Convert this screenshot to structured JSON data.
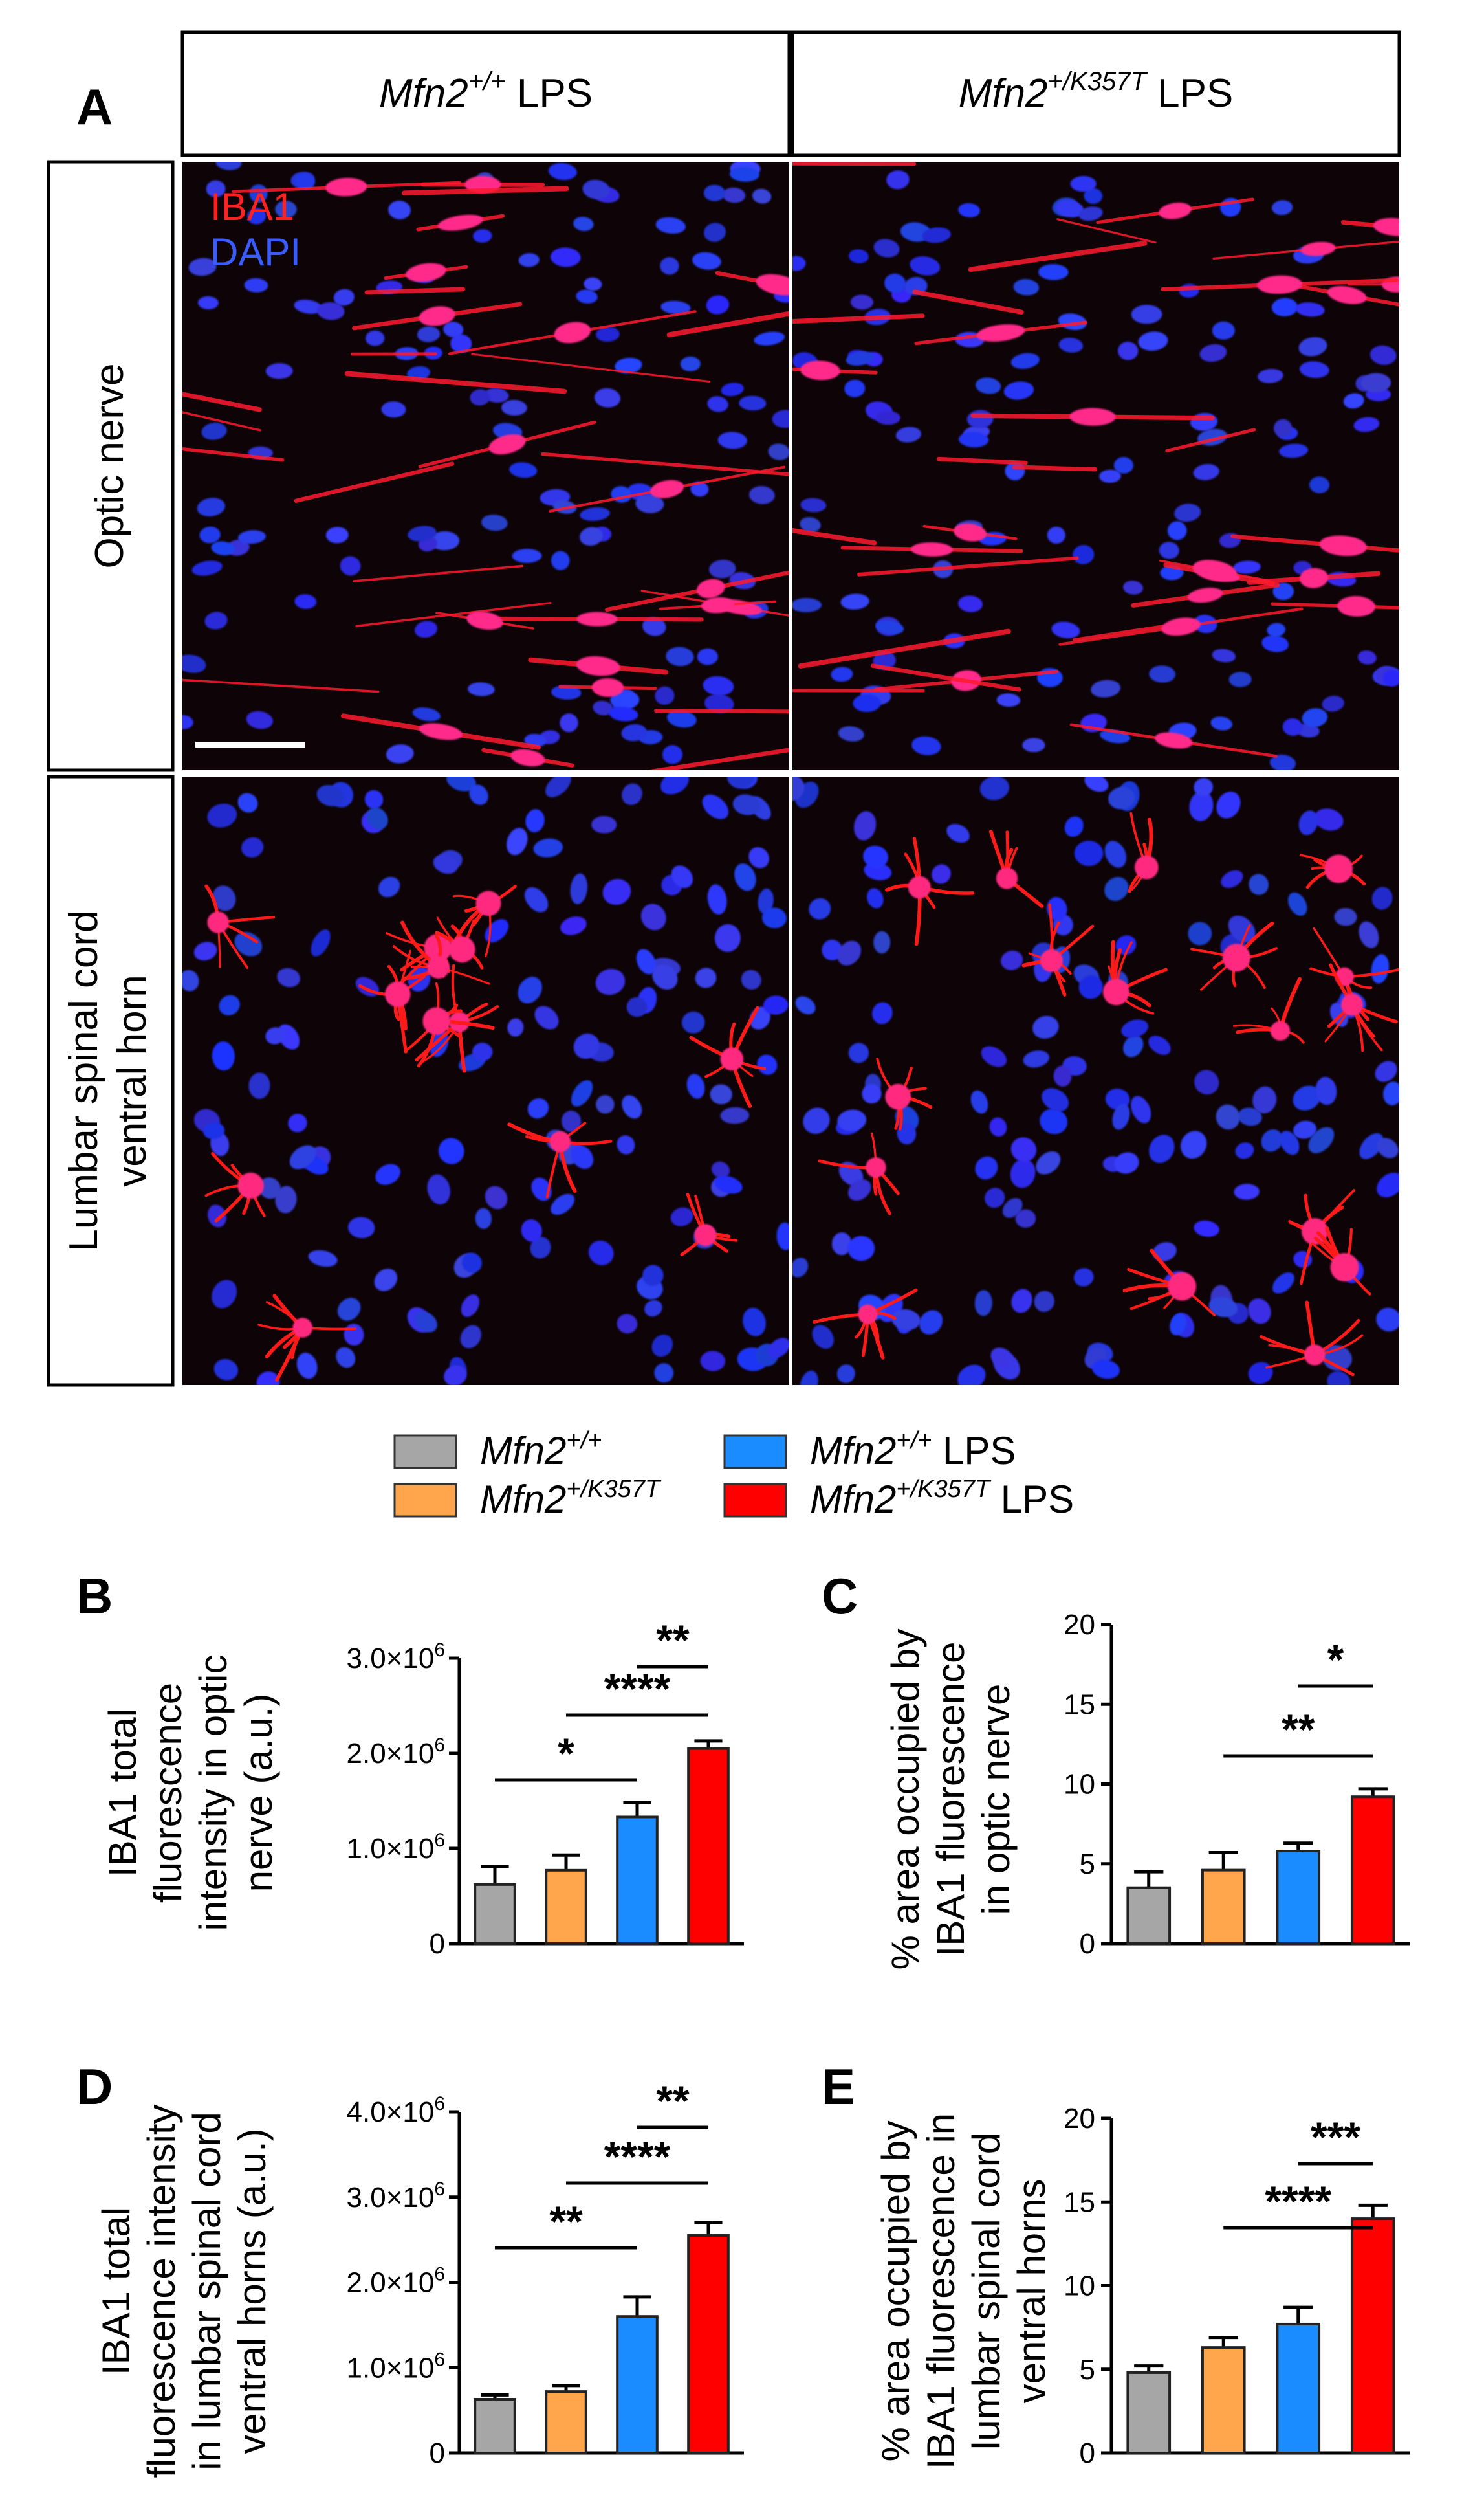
{
  "panel_letters": {
    "a": "A",
    "b": "B",
    "c": "C",
    "d": "D",
    "e": "E"
  },
  "column_headers": [
    {
      "genotype": "Mfn2",
      "superscript": "+/+",
      "suffix": " LPS"
    },
    {
      "genotype": "Mfn2",
      "superscript": "+/K357T",
      "suffix": " LPS"
    }
  ],
  "row_headers": [
    {
      "lines": [
        "Optic nerve"
      ]
    },
    {
      "lines": [
        "Lumbar spinal cord",
        "ventral horn"
      ]
    }
  ],
  "micrograph_labels": {
    "marker": "IBA1",
    "nuclear": "DAPI"
  },
  "colors": {
    "marker_text": "#ff2020",
    "nuclear_text": "#3a5cff",
    "micrograph_bg": "#0e0307"
  },
  "legend": [
    {
      "genotype": "Mfn2",
      "superscript": "+/+",
      "suffix": "",
      "color": "#a6a6a6"
    },
    {
      "genotype": "Mfn2",
      "superscript": "+/K357T",
      "suffix": "",
      "color": "#ffa64d"
    },
    {
      "genotype": "Mfn2",
      "superscript": "+/+",
      "suffix": " LPS",
      "color": "#1a8cff"
    },
    {
      "genotype": "Mfn2",
      "superscript": "+/K357T",
      "suffix": " LPS",
      "color": "#ff0000"
    }
  ],
  "chart_data": [
    {
      "panel": "B",
      "type": "bar",
      "ylabel_lines": [
        "IBA1 total",
        "fluorescence",
        "intensity in optic",
        "nerve (a.u.)"
      ],
      "ylim": [
        0,
        3000000
      ],
      "yticks": [
        0,
        1000000,
        2000000,
        3000000
      ],
      "ytick_labels": [
        {
          "mantissa": "0",
          "exp": ""
        },
        {
          "mantissa": "1.0×10",
          "exp": "6"
        },
        {
          "mantissa": "2.0×10",
          "exp": "6"
        },
        {
          "mantissa": "3.0×10",
          "exp": "6"
        }
      ],
      "values": [
        620000,
        770000,
        1330000,
        2050000
      ],
      "errors": [
        190000,
        160000,
        150000,
        80000
      ],
      "significance": [
        {
          "from": 0,
          "to": 2,
          "label": "*"
        },
        {
          "from": 1,
          "to": 3,
          "label": "****"
        },
        {
          "from": 2,
          "to": 3,
          "label": "**"
        }
      ]
    },
    {
      "panel": "C",
      "type": "bar",
      "ylabel_lines": [
        "% area occupied by",
        "IBA1 fluorescence",
        "in optic nerve"
      ],
      "ylim": [
        0,
        20
      ],
      "yticks": [
        0,
        5,
        10,
        15,
        20
      ],
      "ytick_labels": [
        {
          "mantissa": "0",
          "exp": ""
        },
        {
          "mantissa": "5",
          "exp": ""
        },
        {
          "mantissa": "10",
          "exp": ""
        },
        {
          "mantissa": "15",
          "exp": ""
        },
        {
          "mantissa": "20",
          "exp": ""
        }
      ],
      "values": [
        3.5,
        4.6,
        5.8,
        9.2
      ],
      "errors": [
        1.0,
        1.1,
        0.5,
        0.5
      ],
      "significance": [
        {
          "from": 1,
          "to": 3,
          "label": "**"
        },
        {
          "from": 2,
          "to": 3,
          "label": "*"
        }
      ]
    },
    {
      "panel": "D",
      "type": "bar",
      "ylabel_lines": [
        "IBA1 total",
        "fluorescence intensity",
        "in lumbar spinal cord",
        "ventral horns (a.u.)"
      ],
      "ylim": [
        0,
        4000000
      ],
      "yticks": [
        0,
        1000000,
        2000000,
        3000000,
        4000000
      ],
      "ytick_labels": [
        {
          "mantissa": "0",
          "exp": ""
        },
        {
          "mantissa": "1.0×10",
          "exp": "6"
        },
        {
          "mantissa": "2.0×10",
          "exp": "6"
        },
        {
          "mantissa": "3.0×10",
          "exp": "6"
        },
        {
          "mantissa": "4.0×10",
          "exp": "6"
        }
      ],
      "values": [
        630000,
        720000,
        1600000,
        2550000
      ],
      "errors": [
        50000,
        70000,
        230000,
        150000
      ],
      "significance": [
        {
          "from": 0,
          "to": 2,
          "label": "**"
        },
        {
          "from": 1,
          "to": 3,
          "label": "****"
        },
        {
          "from": 2,
          "to": 3,
          "label": "**"
        }
      ]
    },
    {
      "panel": "E",
      "type": "bar",
      "ylabel_lines": [
        "% area occupied by",
        "IBA1 fluorescence in",
        "lumbar spinal cord",
        "ventral horns"
      ],
      "ylim": [
        0,
        20
      ],
      "yticks": [
        0,
        5,
        10,
        15,
        20
      ],
      "ytick_labels": [
        {
          "mantissa": "0",
          "exp": ""
        },
        {
          "mantissa": "5",
          "exp": ""
        },
        {
          "mantissa": "10",
          "exp": ""
        },
        {
          "mantissa": "15",
          "exp": ""
        },
        {
          "mantissa": "20",
          "exp": ""
        }
      ],
      "values": [
        4.8,
        6.3,
        7.7,
        14.0
      ],
      "errors": [
        0.4,
        0.6,
        1.0,
        0.8
      ],
      "significance": [
        {
          "from": 1,
          "to": 3,
          "label": "****"
        },
        {
          "from": 2,
          "to": 3,
          "label": "***"
        }
      ]
    }
  ]
}
